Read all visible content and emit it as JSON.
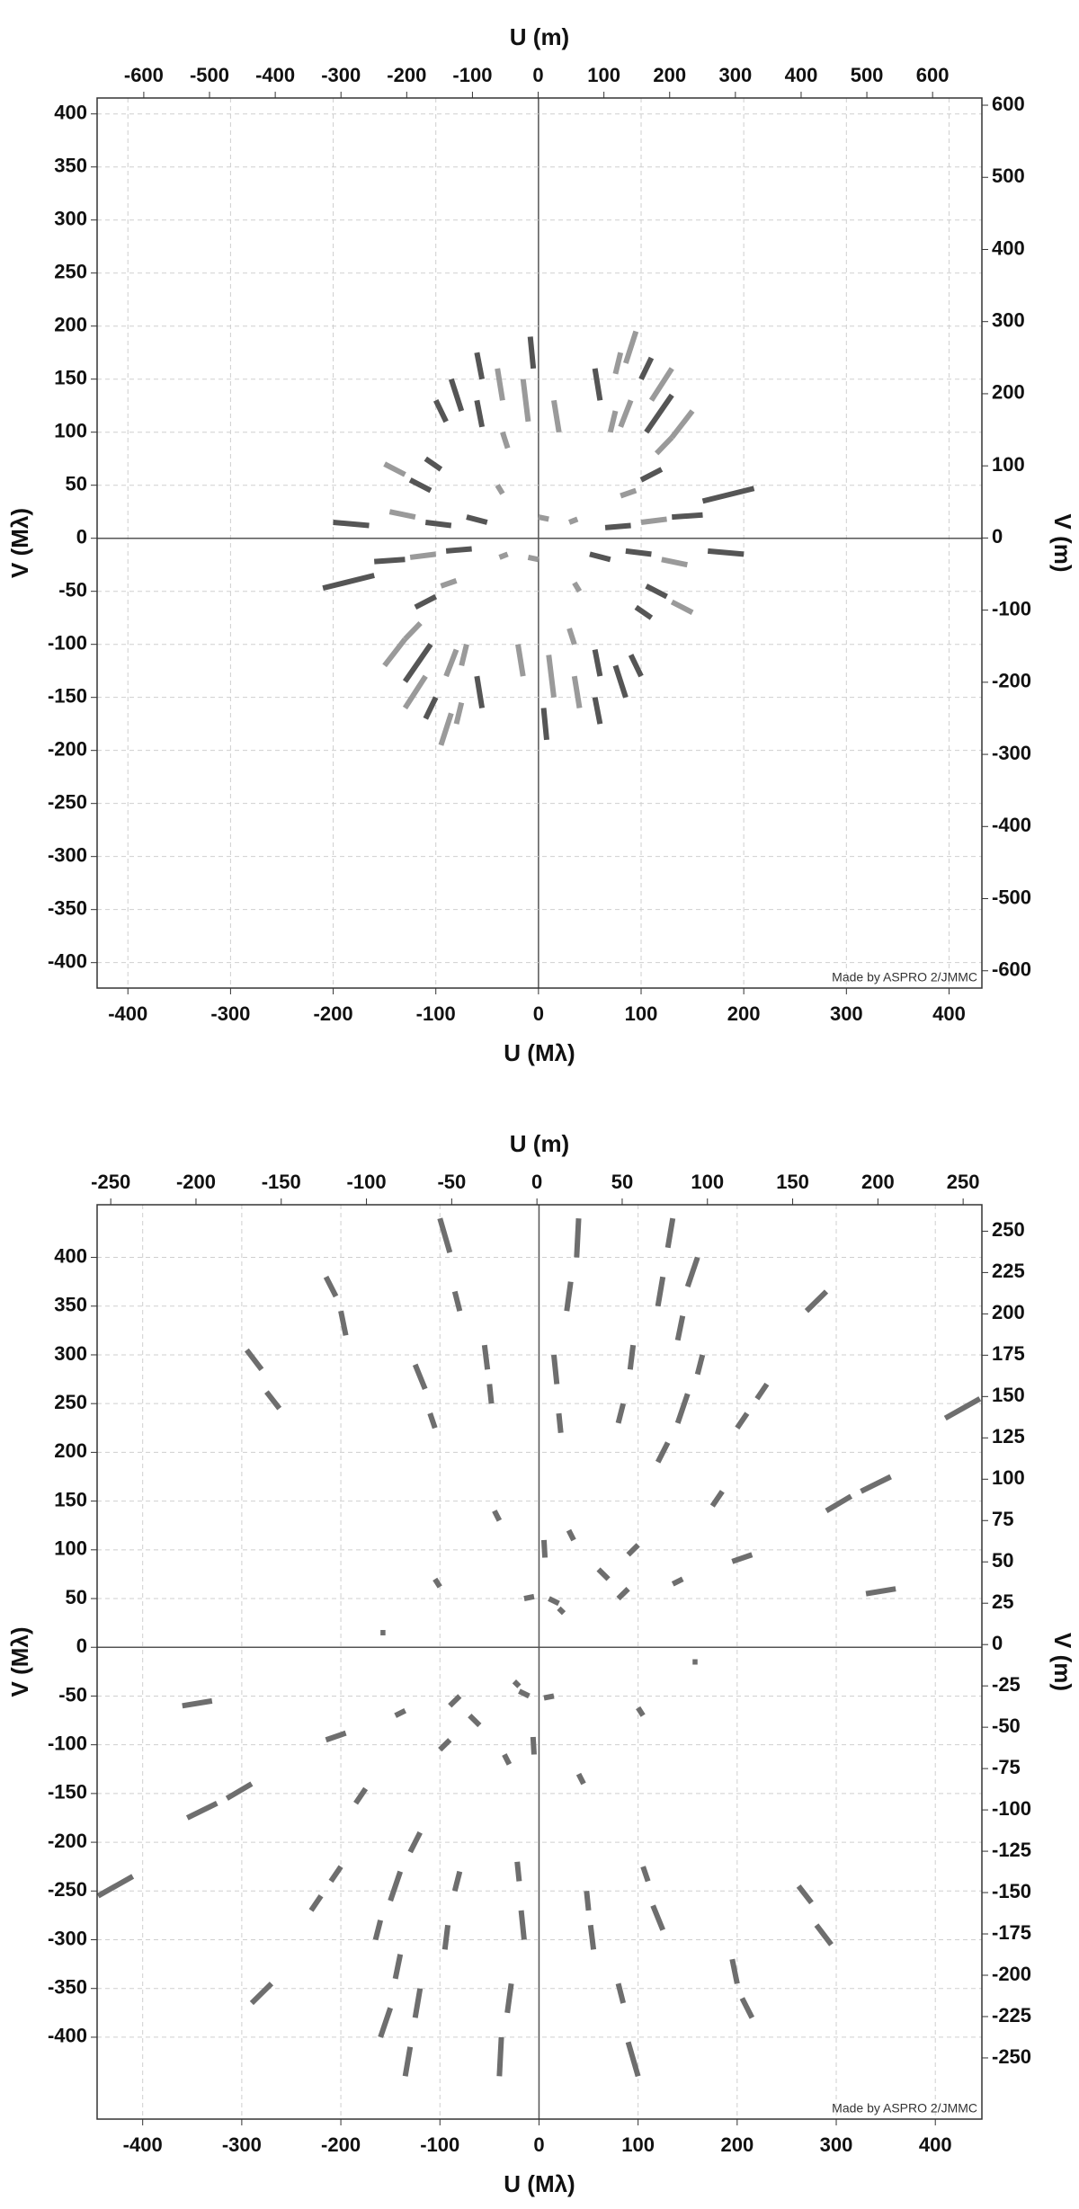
{
  "chart_data": [
    {
      "type": "uv-coverage",
      "xlabel": "U (Mλ)",
      "ylabel": "V (Mλ)",
      "x2label": "U (m)",
      "y2label": "V (m)",
      "credit": "Made by ASPRO 2/JMMC",
      "grid": true,
      "xlim": [
        -430,
        432
      ],
      "ylim": [
        -424,
        415
      ],
      "x2lim": [
        -671,
        675
      ],
      "y2lim": [
        -624,
        610
      ],
      "xticks": [
        -400,
        -300,
        -200,
        -100,
        0,
        100,
        200,
        300,
        400
      ],
      "yticks": [
        -400,
        -350,
        -300,
        -250,
        -200,
        -150,
        -100,
        -50,
        0,
        50,
        100,
        150,
        200,
        250,
        300,
        350,
        400
      ],
      "x2ticks": [
        -600,
        -500,
        -400,
        -300,
        -200,
        -100,
        0,
        100,
        200,
        300,
        400,
        500,
        600
      ],
      "y2ticks": [
        -600,
        -500,
        -400,
        -300,
        -200,
        -100,
        0,
        100,
        200,
        300,
        400,
        500,
        600
      ],
      "series": [
        {
          "color": "#555555",
          "segments": [
            [
              -8,
              190,
              -5,
              160
            ],
            [
              -85,
              150,
              -75,
              120
            ],
            [
              -100,
              130,
              -90,
              110
            ],
            [
              -60,
              175,
              -55,
              150
            ],
            [
              130,
              135,
              105,
              100
            ],
            [
              -110,
              75,
              -95,
              65
            ],
            [
              -125,
              55,
              -105,
              45
            ],
            [
              -200,
              15,
              -165,
              12
            ],
            [
              -110,
              15,
              -85,
              12
            ],
            [
              -70,
              20,
              -50,
              15
            ],
            [
              120,
              65,
              100,
              55
            ],
            [
              130,
              20,
              160,
              22
            ],
            [
              160,
              35,
              210,
              47
            ],
            [
              -60,
              130,
              -55,
              105
            ],
            [
              110,
              170,
              100,
              150
            ],
            [
              65,
              10,
              90,
              12
            ],
            [
              55,
              160,
              60,
              130
            ],
            [
              8,
              -190,
              5,
              -160
            ],
            [
              85,
              -150,
              75,
              -120
            ],
            [
              100,
              -130,
              90,
              -110
            ],
            [
              60,
              -175,
              55,
              -150
            ],
            [
              -130,
              -135,
              -105,
              -100
            ],
            [
              110,
              -75,
              95,
              -65
            ],
            [
              125,
              -55,
              105,
              -45
            ],
            [
              200,
              -15,
              165,
              -12
            ],
            [
              110,
              -15,
              85,
              -12
            ],
            [
              70,
              -20,
              50,
              -15
            ],
            [
              -120,
              -65,
              -100,
              -55
            ],
            [
              -130,
              -20,
              -160,
              -22
            ],
            [
              -160,
              -35,
              -210,
              -47
            ],
            [
              60,
              -130,
              55,
              -105
            ],
            [
              -110,
              -170,
              -100,
              -150
            ],
            [
              -65,
              -10,
              -90,
              -12
            ],
            [
              -55,
              -160,
              -60,
              -130
            ]
          ]
        },
        {
          "color": "#9a9a9a",
          "segments": [
            [
              -40,
              160,
              -35,
              130
            ],
            [
              -15,
              150,
              -10,
              110
            ],
            [
              -35,
              100,
              -30,
              85
            ],
            [
              15,
              130,
              20,
              100
            ],
            [
              80,
              175,
              75,
              155
            ],
            [
              95,
              195,
              85,
              165
            ],
            [
              130,
              160,
              110,
              130
            ],
            [
              150,
              120,
              130,
              95
            ],
            [
              130,
              95,
              115,
              80
            ],
            [
              75,
              120,
              70,
              100
            ],
            [
              90,
              130,
              80,
              105
            ],
            [
              -150,
              70,
              -130,
              60
            ],
            [
              -145,
              25,
              -120,
              20
            ],
            [
              -40,
              50,
              -35,
              42
            ],
            [
              0,
              20,
              10,
              18
            ],
            [
              30,
              15,
              38,
              18
            ],
            [
              80,
              40,
              95,
              45
            ],
            [
              100,
              15,
              125,
              18
            ],
            [
              40,
              -160,
              35,
              -130
            ],
            [
              15,
              -150,
              10,
              -110
            ],
            [
              35,
              -100,
              30,
              -85
            ],
            [
              -15,
              -130,
              -20,
              -100
            ],
            [
              -80,
              -175,
              -75,
              -155
            ],
            [
              -95,
              -195,
              -85,
              -165
            ],
            [
              -130,
              -160,
              -110,
              -130
            ],
            [
              -150,
              -120,
              -130,
              -95
            ],
            [
              -130,
              -95,
              -115,
              -80
            ],
            [
              -75,
              -120,
              -70,
              -100
            ],
            [
              -90,
              -130,
              -80,
              -105
            ],
            [
              150,
              -70,
              130,
              -60
            ],
            [
              145,
              -25,
              120,
              -20
            ],
            [
              40,
              -50,
              35,
              -42
            ],
            [
              0,
              -20,
              -10,
              -18
            ],
            [
              -30,
              -15,
              -38,
              -18
            ],
            [
              -80,
              -40,
              -95,
              -45
            ],
            [
              -100,
              -15,
              -125,
              -18
            ]
          ]
        }
      ]
    },
    {
      "type": "uv-coverage",
      "xlabel": "U (Mλ)",
      "ylabel": "V (Mλ)",
      "x2label": "U (m)",
      "y2label": "V (m)",
      "credit": "Made by ASPRO 2/JMMC",
      "grid": true,
      "xlim": [
        -446,
        447
      ],
      "ylim": [
        -484,
        454
      ],
      "x2lim": [
        -258,
        261
      ],
      "y2lim": [
        -287,
        266
      ],
      "xticks": [
        -400,
        -300,
        -200,
        -100,
        0,
        100,
        200,
        300,
        400
      ],
      "yticks": [
        -400,
        -350,
        -300,
        -250,
        -200,
        -150,
        -100,
        -50,
        0,
        50,
        100,
        150,
        200,
        250,
        300,
        350,
        400
      ],
      "x2ticks": [
        -250,
        -200,
        -150,
        -100,
        -50,
        0,
        50,
        100,
        150,
        200,
        250
      ],
      "y2ticks": [
        -250,
        -225,
        -200,
        -175,
        -150,
        -125,
        -100,
        -75,
        -50,
        -25,
        0,
        25,
        50,
        75,
        100,
        125,
        150,
        175,
        200,
        225,
        250
      ],
      "series": [
        {
          "color": "#6e6e6e",
          "segments": [
            [
              -295,
              305,
              -280,
              285
            ],
            [
              -275,
              262,
              -262,
              245
            ],
            [
              -215,
              380,
              -205,
              360
            ],
            [
              -200,
              345,
              -195,
              320
            ],
            [
              -125,
              290,
              -115,
              265
            ],
            [
              -110,
              240,
              -105,
              225
            ],
            [
              -100,
              440,
              -90,
              405
            ],
            [
              -85,
              365,
              -80,
              345
            ],
            [
              -55,
              310,
              -52,
              285
            ],
            [
              -50,
              270,
              -48,
              250
            ],
            [
              15,
              300,
              18,
              270
            ],
            [
              20,
              240,
              22,
              220
            ],
            [
              40,
              440,
              38,
              400
            ],
            [
              32,
              375,
              28,
              345
            ],
            [
              95,
              310,
              92,
              285
            ],
            [
              85,
              250,
              80,
              230
            ],
            [
              135,
              440,
              130,
              410
            ],
            [
              125,
              380,
              120,
              350
            ],
            [
              160,
              400,
              150,
              370
            ],
            [
              145,
              340,
              140,
              315
            ],
            [
              165,
              300,
              160,
              280
            ],
            [
              150,
              260,
              140,
              230
            ],
            [
              130,
              210,
              120,
              190
            ],
            [
              290,
              365,
              270,
              345
            ],
            [
              230,
              270,
              220,
              255
            ],
            [
              210,
              240,
              200,
              225
            ],
            [
              445,
              255,
              410,
              235
            ],
            [
              355,
              175,
              325,
              160
            ],
            [
              315,
              155,
              290,
              140
            ],
            [
              185,
              160,
              175,
              145
            ],
            [
              215,
              95,
              195,
              88
            ],
            [
              360,
              60,
              330,
              55
            ],
            [
              -160,
              15,
              -155,
              15
            ],
            [
              -105,
              70,
              -100,
              62
            ],
            [
              -45,
              140,
              -40,
              130
            ],
            [
              5,
              110,
              6,
              92
            ],
            [
              30,
              120,
              35,
              110
            ],
            [
              60,
              80,
              70,
              70
            ],
            [
              100,
              105,
              90,
              95
            ],
            [
              80,
              50,
              90,
              60
            ],
            [
              135,
              65,
              145,
              70
            ],
            [
              -15,
              50,
              -5,
              52
            ],
            [
              10,
              50,
              20,
              45
            ],
            [
              20,
              40,
              25,
              35
            ],
            [
              295,
              -305,
              280,
              -285
            ],
            [
              275,
              -262,
              262,
              -245
            ],
            [
              215,
              -380,
              205,
              -360
            ],
            [
              200,
              -345,
              195,
              -320
            ],
            [
              125,
              -290,
              115,
              -265
            ],
            [
              110,
              -240,
              105,
              -225
            ],
            [
              100,
              -440,
              90,
              -405
            ],
            [
              85,
              -365,
              80,
              -345
            ],
            [
              55,
              -310,
              52,
              -285
            ],
            [
              50,
              -270,
              48,
              -250
            ],
            [
              -15,
              -300,
              -18,
              -270
            ],
            [
              -20,
              -240,
              -22,
              -220
            ],
            [
              -40,
              -440,
              -38,
              -400
            ],
            [
              -32,
              -375,
              -28,
              -345
            ],
            [
              -95,
              -310,
              -92,
              -285
            ],
            [
              -85,
              -250,
              -80,
              -230
            ],
            [
              -135,
              -440,
              -130,
              -410
            ],
            [
              -125,
              -380,
              -120,
              -350
            ],
            [
              -160,
              -400,
              -150,
              -370
            ],
            [
              -145,
              -340,
              -140,
              -315
            ],
            [
              -165,
              -300,
              -160,
              -280
            ],
            [
              -150,
              -260,
              -140,
              -230
            ],
            [
              -130,
              -210,
              -120,
              -190
            ],
            [
              -290,
              -365,
              -270,
              -345
            ],
            [
              -230,
              -270,
              -220,
              -255
            ],
            [
              -210,
              -240,
              -200,
              -225
            ],
            [
              -445,
              -255,
              -410,
              -235
            ],
            [
              -355,
              -175,
              -325,
              -160
            ],
            [
              -315,
              -155,
              -290,
              -140
            ],
            [
              -185,
              -160,
              -175,
              -145
            ],
            [
              -215,
              -95,
              -195,
              -88
            ],
            [
              -360,
              -60,
              -330,
              -55
            ],
            [
              160,
              -15,
              155,
              -15
            ],
            [
              105,
              -70,
              100,
              -62
            ],
            [
              45,
              -140,
              40,
              -130
            ],
            [
              -5,
              -110,
              -6,
              -92
            ],
            [
              -30,
              -120,
              -35,
              -110
            ],
            [
              -60,
              -80,
              -70,
              -70
            ],
            [
              -100,
              -105,
              -90,
              -95
            ],
            [
              -80,
              -50,
              -90,
              -60
            ],
            [
              -135,
              -65,
              -145,
              -70
            ],
            [
              15,
              -50,
              5,
              -52
            ],
            [
              -10,
              -50,
              -20,
              -45
            ],
            [
              -20,
              -40,
              -25,
              -35
            ]
          ]
        }
      ]
    }
  ]
}
